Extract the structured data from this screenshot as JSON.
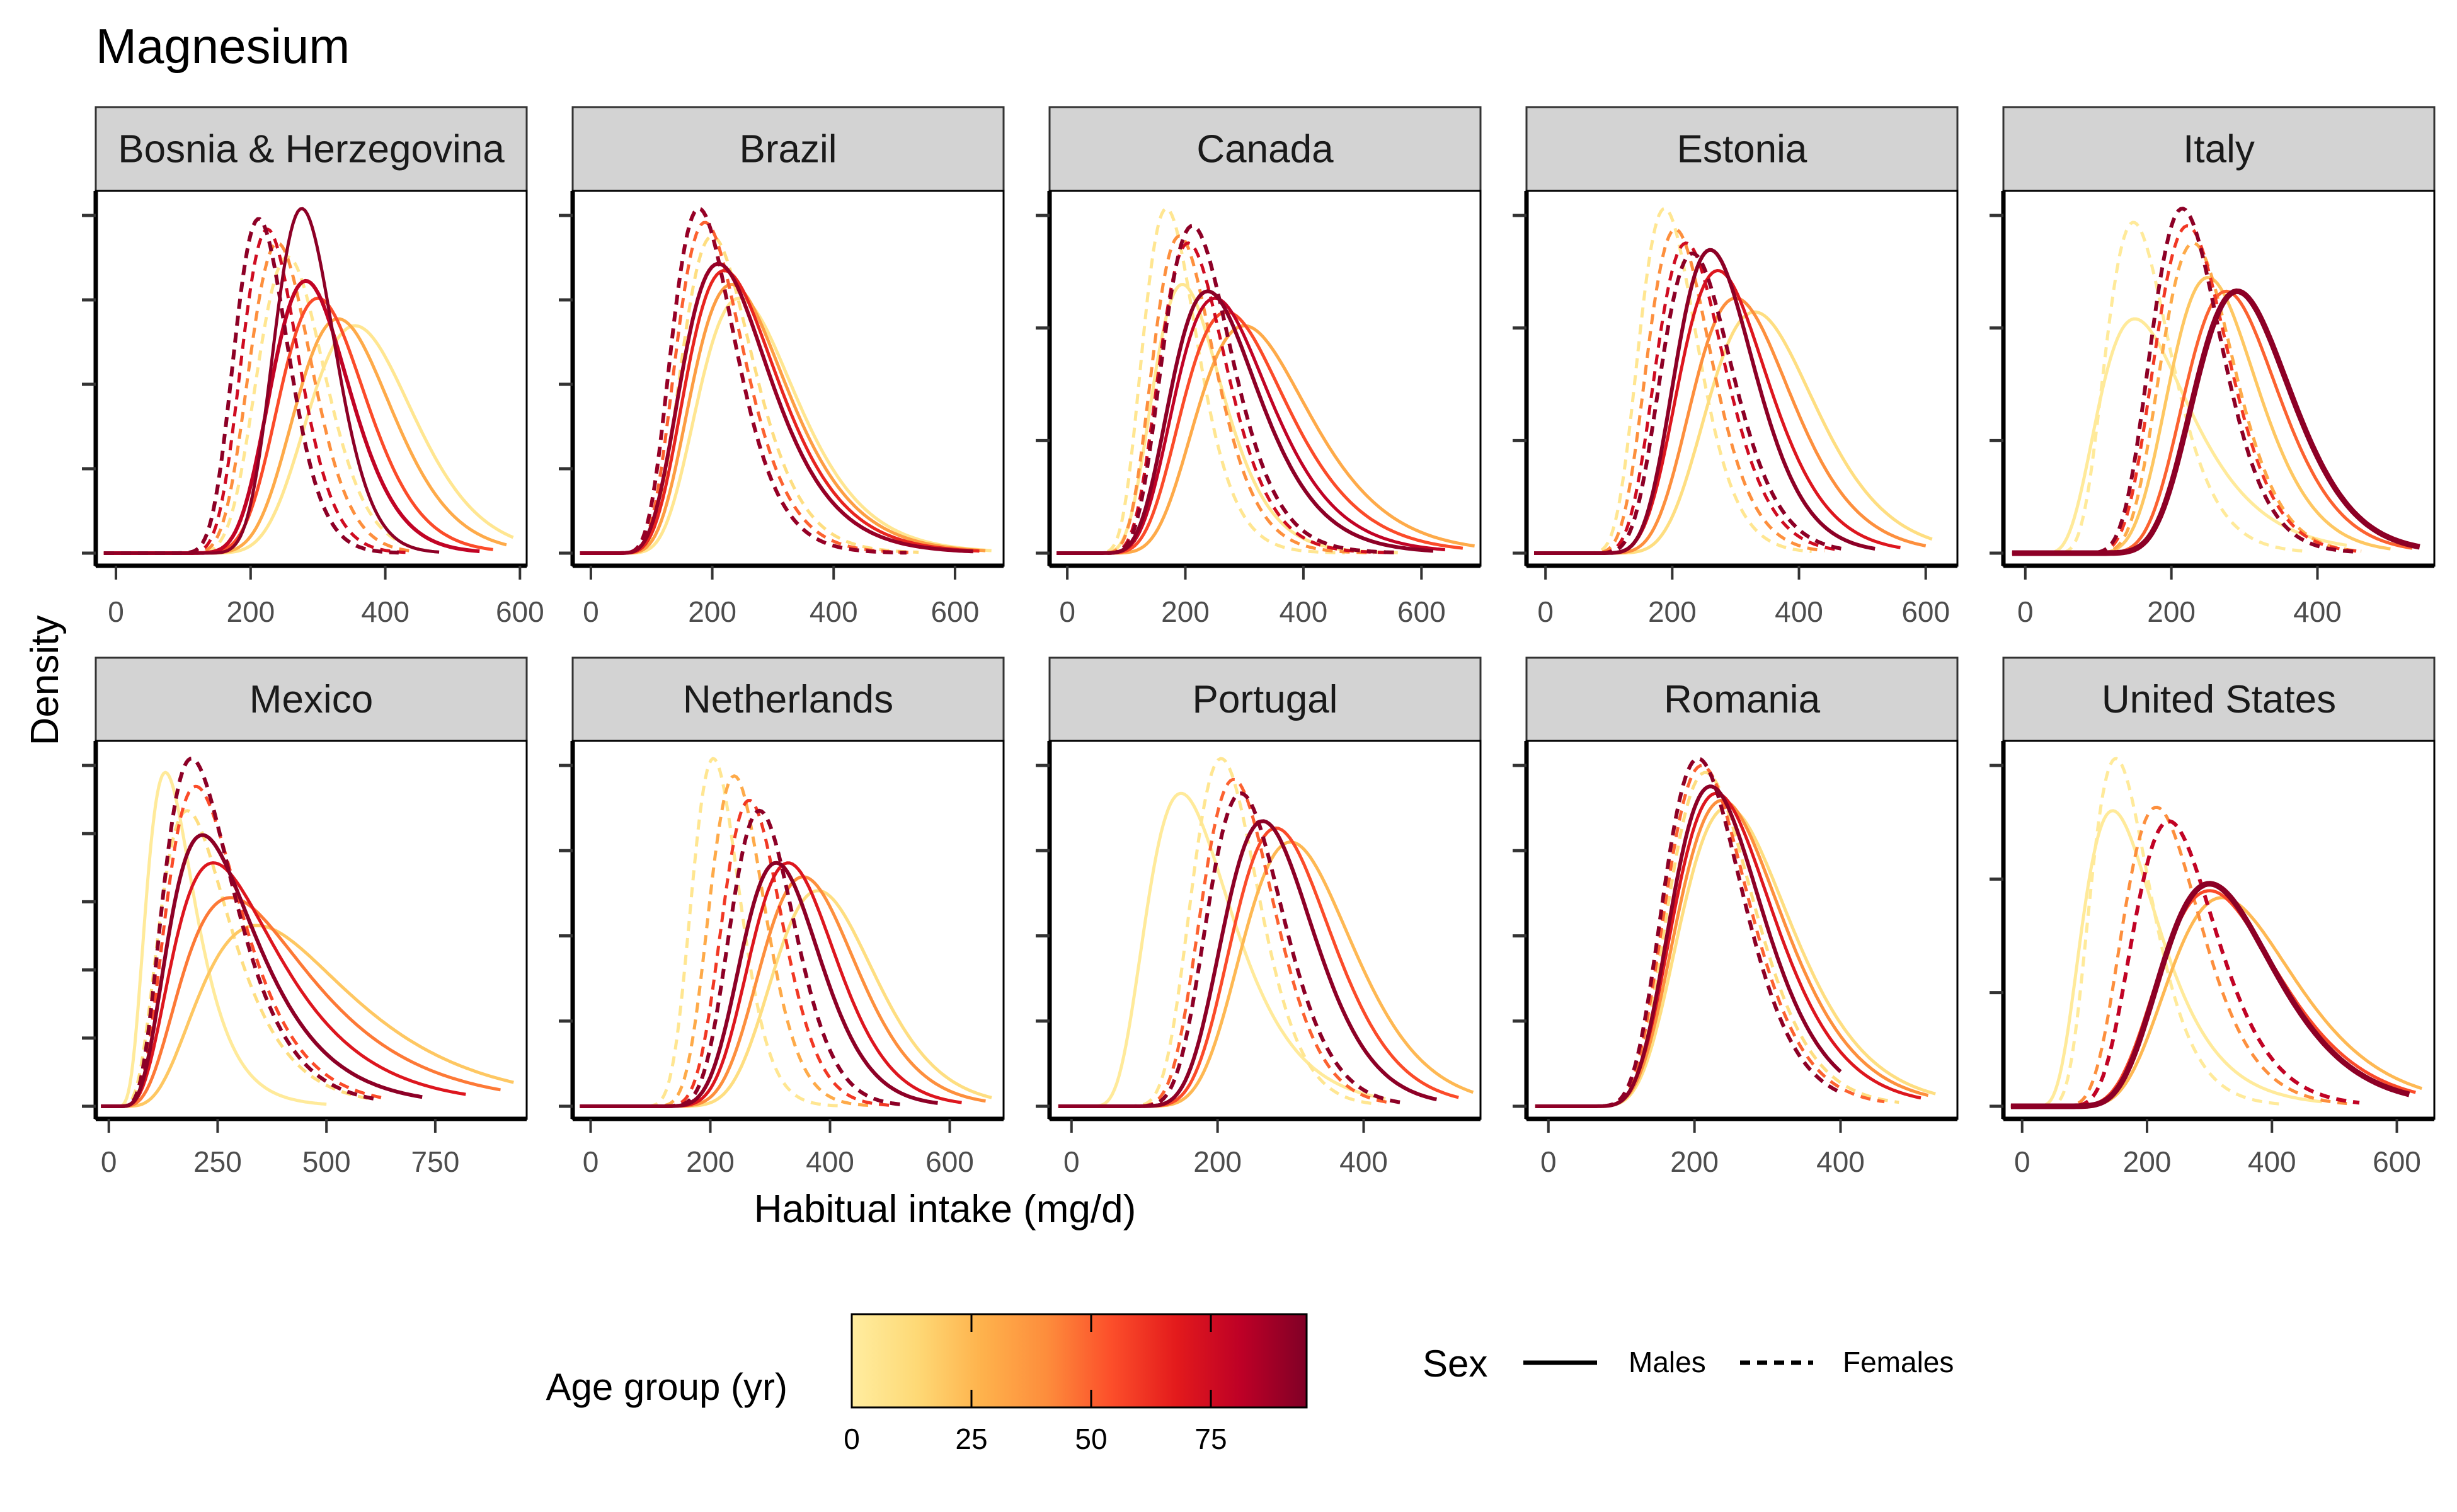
{
  "chart_data": {
    "type": "line",
    "title": "Magnesium",
    "xlabel": "Habitual intake (mg/d)",
    "ylabel": "Density",
    "grid": false,
    "y_tick_labels_shown": false,
    "legend_position": "bottom",
    "colorbar": {
      "title": "Age group (yr)",
      "ticks": [
        "0",
        "25",
        "50",
        "75"
      ],
      "range": [
        0,
        95
      ],
      "colors": [
        "#ffeda0",
        "#fed976",
        "#feb24c",
        "#fd8d3c",
        "#fc4e2a",
        "#e31a1c",
        "#bd0026",
        "#800026"
      ]
    },
    "sex_legend": {
      "title": "Sex",
      "entries": [
        {
          "label": "Males",
          "linetype": "solid"
        },
        {
          "label": "Females",
          "linetype": "dashed"
        }
      ]
    },
    "panels": [
      {
        "country": "Bosnia & Herzegovina",
        "xlim": [
          -30,
          610
        ],
        "x_ticks": [
          "0",
          "200",
          "400",
          "600"
        ],
        "x_tick_values": [
          0,
          200,
          400,
          600
        ],
        "yticks": 5,
        "curves": [
          {
            "sex": "Males",
            "age": 5,
            "peak_x": 355,
            "peak": 0.66,
            "sd": 78,
            "max_x": 590,
            "width": 5
          },
          {
            "sex": "Males",
            "age": 30,
            "peak_x": 330,
            "peak": 0.68,
            "sd": 72,
            "max_x": 580,
            "width": 5
          },
          {
            "sex": "Males",
            "age": 55,
            "peak_x": 300,
            "peak": 0.74,
            "sd": 64,
            "max_x": 560,
            "width": 5
          },
          {
            "sex": "Males",
            "age": 80,
            "peak_x": 282,
            "peak": 0.79,
            "sd": 58,
            "max_x": 540,
            "width": 6
          },
          {
            "sex": "Males",
            "age": 92,
            "peak_x": 276,
            "peak": 1.0,
            "sd": 45,
            "max_x": 480,
            "width": 5
          },
          {
            "sex": "Females",
            "age": 5,
            "peak_x": 255,
            "peak": 0.86,
            "sd": 50,
            "max_x": 450,
            "width": 5
          },
          {
            "sex": "Females",
            "age": 40,
            "peak_x": 240,
            "peak": 0.9,
            "sd": 46,
            "max_x": 440,
            "width": 5
          },
          {
            "sex": "Females",
            "age": 75,
            "peak_x": 225,
            "peak": 0.94,
            "sd": 42,
            "max_x": 430,
            "width": 5
          },
          {
            "sex": "Females",
            "age": 92,
            "peak_x": 212,
            "peak": 0.97,
            "sd": 40,
            "max_x": 420,
            "width": 6
          }
        ]
      },
      {
        "country": "Brazil",
        "xlim": [
          -30,
          680
        ],
        "x_ticks": [
          "0",
          "200",
          "400",
          "600"
        ],
        "x_tick_values": [
          0,
          200,
          400,
          600
        ],
        "yticks": 5,
        "curves": [
          {
            "sex": "Males",
            "age": 5,
            "peak_x": 245,
            "peak": 0.74,
            "sd": 80,
            "max_x": 660,
            "width": 5
          },
          {
            "sex": "Males",
            "age": 35,
            "peak_x": 232,
            "peak": 0.78,
            "sd": 78,
            "max_x": 650,
            "width": 5
          },
          {
            "sex": "Males",
            "age": 65,
            "peak_x": 220,
            "peak": 0.82,
            "sd": 75,
            "max_x": 640,
            "width": 5
          },
          {
            "sex": "Males",
            "age": 90,
            "peak_x": 210,
            "peak": 0.84,
            "sd": 72,
            "max_x": 630,
            "width": 6
          },
          {
            "sex": "Females",
            "age": 10,
            "peak_x": 200,
            "peak": 0.92,
            "sd": 58,
            "max_x": 540,
            "width": 5
          },
          {
            "sex": "Females",
            "age": 50,
            "peak_x": 188,
            "peak": 0.96,
            "sd": 55,
            "max_x": 530,
            "width": 5
          },
          {
            "sex": "Females",
            "age": 90,
            "peak_x": 178,
            "peak": 1.0,
            "sd": 52,
            "max_x": 520,
            "width": 6
          }
        ]
      },
      {
        "country": "Canada",
        "xlim": [
          -30,
          700
        ],
        "x_ticks": [
          "0",
          "200",
          "400",
          "600"
        ],
        "x_tick_values": [
          0,
          200,
          400,
          600
        ],
        "yticks": 4,
        "curves": [
          {
            "sex": "Males",
            "age": 5,
            "peak_x": 195,
            "peak": 0.78,
            "sd": 58,
            "max_x": 560,
            "width": 5
          },
          {
            "sex": "Males",
            "age": 30,
            "peak_x": 300,
            "peak": 0.66,
            "sd": 95,
            "max_x": 690,
            "width": 5
          },
          {
            "sex": "Males",
            "age": 55,
            "peak_x": 270,
            "peak": 0.7,
            "sd": 88,
            "max_x": 670,
            "width": 5
          },
          {
            "sex": "Males",
            "age": 80,
            "peak_x": 250,
            "peak": 0.74,
            "sd": 80,
            "max_x": 640,
            "width": 5
          },
          {
            "sex": "Males",
            "age": 92,
            "peak_x": 238,
            "peak": 0.76,
            "sd": 74,
            "max_x": 620,
            "width": 6
          },
          {
            "sex": "Females",
            "age": 5,
            "peak_x": 168,
            "peak": 1.0,
            "sd": 46,
            "max_x": 470,
            "width": 5
          },
          {
            "sex": "Females",
            "age": 40,
            "peak_x": 190,
            "peak": 0.92,
            "sd": 52,
            "max_x": 520,
            "width": 5
          },
          {
            "sex": "Females",
            "age": 75,
            "peak_x": 205,
            "peak": 0.9,
            "sd": 56,
            "max_x": 540,
            "width": 5
          },
          {
            "sex": "Females",
            "age": 92,
            "peak_x": 212,
            "peak": 0.95,
            "sd": 58,
            "max_x": 560,
            "width": 6
          }
        ]
      },
      {
        "country": "Estonia",
        "xlim": [
          -30,
          650
        ],
        "x_ticks": [
          "0",
          "200",
          "400",
          "600"
        ],
        "x_tick_values": [
          0,
          200,
          400,
          600
        ],
        "yticks": 4,
        "curves": [
          {
            "sex": "Males",
            "age": 10,
            "peak_x": 330,
            "peak": 0.7,
            "sd": 85,
            "max_x": 610,
            "width": 5
          },
          {
            "sex": "Males",
            "age": 40,
            "peak_x": 300,
            "peak": 0.74,
            "sd": 78,
            "max_x": 600,
            "width": 5
          },
          {
            "sex": "Males",
            "age": 70,
            "peak_x": 272,
            "peak": 0.82,
            "sd": 70,
            "max_x": 560,
            "width": 5
          },
          {
            "sex": "Males",
            "age": 92,
            "peak_x": 260,
            "peak": 0.88,
            "sd": 62,
            "max_x": 520,
            "width": 6
          },
          {
            "sex": "Females",
            "age": 5,
            "peak_x": 188,
            "peak": 1.0,
            "sd": 46,
            "max_x": 420,
            "width": 5
          },
          {
            "sex": "Females",
            "age": 40,
            "peak_x": 205,
            "peak": 0.94,
            "sd": 50,
            "max_x": 440,
            "width": 5
          },
          {
            "sex": "Females",
            "age": 75,
            "peak_x": 222,
            "peak": 0.9,
            "sd": 54,
            "max_x": 460,
            "width": 5
          },
          {
            "sex": "Females",
            "age": 92,
            "peak_x": 232,
            "peak": 0.87,
            "sd": 56,
            "max_x": 470,
            "width": 6
          }
        ]
      },
      {
        "country": "Italy",
        "xlim": [
          -30,
          560
        ],
        "x_ticks": [
          "0",
          "200",
          "400"
        ],
        "x_tick_values": [
          0,
          200,
          400
        ],
        "yticks": 4,
        "curves": [
          {
            "sex": "Males",
            "age": 2,
            "peak_x": 150,
            "peak": 0.68,
            "sd": 62,
            "max_x": 440,
            "width": 5
          },
          {
            "sex": "Males",
            "age": 20,
            "peak_x": 250,
            "peak": 0.8,
            "sd": 60,
            "max_x": 500,
            "width": 5
          },
          {
            "sex": "Males",
            "age": 50,
            "peak_x": 275,
            "peak": 0.76,
            "sd": 64,
            "max_x": 530,
            "width": 5
          },
          {
            "sex": "Males",
            "age": 92,
            "peak_x": 290,
            "peak": 0.76,
            "sd": 66,
            "max_x": 540,
            "width": 9
          },
          {
            "sex": "Females",
            "age": 2,
            "peak_x": 148,
            "peak": 0.96,
            "sd": 44,
            "max_x": 380,
            "width": 5
          },
          {
            "sex": "Females",
            "age": 30,
            "peak_x": 230,
            "peak": 0.9,
            "sd": 50,
            "max_x": 460,
            "width": 5
          },
          {
            "sex": "Females",
            "age": 60,
            "peak_x": 222,
            "peak": 0.95,
            "sd": 50,
            "max_x": 460,
            "width": 5
          },
          {
            "sex": "Females",
            "age": 92,
            "peak_x": 215,
            "peak": 1.0,
            "sd": 48,
            "max_x": 450,
            "width": 6
          }
        ]
      },
      {
        "country": "Mexico",
        "xlim": [
          -30,
          960
        ],
        "x_ticks": [
          "0",
          "250",
          "500",
          "750"
        ],
        "x_tick_values": [
          0,
          250,
          500,
          750
        ],
        "yticks": 6,
        "curves": [
          {
            "sex": "Males",
            "age": 2,
            "peak_x": 130,
            "peak": 0.96,
            "sd": 55,
            "max_x": 500,
            "width": 5
          },
          {
            "sex": "Males",
            "age": 20,
            "peak_x": 340,
            "peak": 0.52,
            "sd": 170,
            "max_x": 930,
            "width": 5
          },
          {
            "sex": "Males",
            "age": 45,
            "peak_x": 280,
            "peak": 0.6,
            "sd": 145,
            "max_x": 900,
            "width": 5
          },
          {
            "sex": "Males",
            "age": 70,
            "peak_x": 240,
            "peak": 0.7,
            "sd": 120,
            "max_x": 820,
            "width": 5
          },
          {
            "sex": "Males",
            "age": 92,
            "peak_x": 215,
            "peak": 0.78,
            "sd": 100,
            "max_x": 720,
            "width": 6
          },
          {
            "sex": "Females",
            "age": 10,
            "peak_x": 180,
            "peak": 0.85,
            "sd": 80,
            "max_x": 600,
            "width": 5
          },
          {
            "sex": "Females",
            "age": 55,
            "peak_x": 200,
            "peak": 0.92,
            "sd": 85,
            "max_x": 640,
            "width": 5
          },
          {
            "sex": "Females",
            "age": 92,
            "peak_x": 190,
            "peak": 1.0,
            "sd": 80,
            "max_x": 620,
            "width": 6
          }
        ]
      },
      {
        "country": "Netherlands",
        "xlim": [
          -30,
          690
        ],
        "x_ticks": [
          "0",
          "200",
          "400",
          "600"
        ],
        "x_tick_values": [
          0,
          200,
          400,
          600
        ],
        "yticks": 5,
        "curves": [
          {
            "sex": "Males",
            "age": 10,
            "peak_x": 380,
            "peak": 0.62,
            "sd": 85,
            "max_x": 670,
            "width": 5
          },
          {
            "sex": "Males",
            "age": 40,
            "peak_x": 355,
            "peak": 0.66,
            "sd": 80,
            "max_x": 660,
            "width": 5
          },
          {
            "sex": "Males",
            "age": 70,
            "peak_x": 330,
            "peak": 0.7,
            "sd": 72,
            "max_x": 620,
            "width": 5
          },
          {
            "sex": "Males",
            "age": 92,
            "peak_x": 310,
            "peak": 0.7,
            "sd": 66,
            "max_x": 580,
            "width": 6
          },
          {
            "sex": "Females",
            "age": 5,
            "peak_x": 205,
            "peak": 1.0,
            "sd": 40,
            "max_x": 420,
            "width": 5
          },
          {
            "sex": "Females",
            "age": 30,
            "peak_x": 240,
            "peak": 0.95,
            "sd": 46,
            "max_x": 470,
            "width": 5
          },
          {
            "sex": "Females",
            "age": 60,
            "peak_x": 265,
            "peak": 0.88,
            "sd": 50,
            "max_x": 500,
            "width": 5
          },
          {
            "sex": "Females",
            "age": 92,
            "peak_x": 282,
            "peak": 0.85,
            "sd": 54,
            "max_x": 520,
            "width": 6
          }
        ]
      },
      {
        "country": "Portugal",
        "xlim": [
          -30,
          560
        ],
        "x_ticks": [
          "0",
          "200",
          "400"
        ],
        "x_tick_values": [
          0,
          200,
          400
        ],
        "yticks": 5,
        "curves": [
          {
            "sex": "Males",
            "age": 2,
            "peak_x": 150,
            "peak": 0.9,
            "sd": 58,
            "max_x": 430,
            "width": 5
          },
          {
            "sex": "Males",
            "age": 25,
            "peak_x": 300,
            "peak": 0.76,
            "sd": 75,
            "max_x": 550,
            "width": 5
          },
          {
            "sex": "Males",
            "age": 55,
            "peak_x": 280,
            "peak": 0.8,
            "sd": 68,
            "max_x": 530,
            "width": 5
          },
          {
            "sex": "Males",
            "age": 92,
            "peak_x": 262,
            "peak": 0.82,
            "sd": 62,
            "max_x": 500,
            "width": 6
          },
          {
            "sex": "Females",
            "age": 5,
            "peak_x": 205,
            "peak": 1.0,
            "sd": 46,
            "max_x": 420,
            "width": 5
          },
          {
            "sex": "Females",
            "age": 50,
            "peak_x": 222,
            "peak": 0.94,
            "sd": 50,
            "max_x": 440,
            "width": 5
          },
          {
            "sex": "Females",
            "age": 92,
            "peak_x": 232,
            "peak": 0.9,
            "sd": 52,
            "max_x": 450,
            "width": 6
          }
        ]
      },
      {
        "country": "Romania",
        "xlim": [
          -30,
          560
        ],
        "x_ticks": [
          "0",
          "200",
          "400"
        ],
        "x_tick_values": [
          0,
          200,
          400
        ],
        "yticks": 5,
        "curves": [
          {
            "sex": "Males",
            "age": 10,
            "peak_x": 245,
            "peak": 0.86,
            "sd": 75,
            "max_x": 530,
            "width": 5
          },
          {
            "sex": "Males",
            "age": 40,
            "peak_x": 238,
            "peak": 0.88,
            "sd": 72,
            "max_x": 520,
            "width": 5
          },
          {
            "sex": "Males",
            "age": 70,
            "peak_x": 230,
            "peak": 0.9,
            "sd": 68,
            "max_x": 510,
            "width": 5
          },
          {
            "sex": "Males",
            "age": 92,
            "peak_x": 222,
            "peak": 0.92,
            "sd": 62,
            "max_x": 400,
            "width": 6
          },
          {
            "sex": "Females",
            "age": 10,
            "peak_x": 215,
            "peak": 0.96,
            "sd": 58,
            "max_x": 480,
            "width": 5
          },
          {
            "sex": "Females",
            "age": 50,
            "peak_x": 210,
            "peak": 0.98,
            "sd": 56,
            "max_x": 460,
            "width": 5
          },
          {
            "sex": "Females",
            "age": 92,
            "peak_x": 205,
            "peak": 1.0,
            "sd": 54,
            "max_x": 400,
            "width": 6
          }
        ]
      },
      {
        "country": "United States",
        "xlim": [
          -30,
          660
        ],
        "x_ticks": [
          "0",
          "200",
          "400",
          "600"
        ],
        "x_tick_values": [
          0,
          200,
          400,
          600
        ],
        "yticks": 4,
        "curves": [
          {
            "sex": "Males",
            "age": 2,
            "peak_x": 145,
            "peak": 0.85,
            "sd": 60,
            "max_x": 480,
            "width": 5
          },
          {
            "sex": "Males",
            "age": 25,
            "peak_x": 320,
            "peak": 0.6,
            "sd": 100,
            "max_x": 640,
            "width": 5
          },
          {
            "sex": "Males",
            "age": 55,
            "peak_x": 300,
            "peak": 0.62,
            "sd": 95,
            "max_x": 630,
            "width": 5
          },
          {
            "sex": "Males",
            "age": 92,
            "peak_x": 300,
            "peak": 0.64,
            "sd": 90,
            "max_x": 620,
            "width": 9
          },
          {
            "sex": "Females",
            "age": 2,
            "peak_x": 150,
            "peak": 1.0,
            "sd": 48,
            "max_x": 420,
            "width": 5
          },
          {
            "sex": "Females",
            "age": 40,
            "peak_x": 215,
            "peak": 0.86,
            "sd": 62,
            "max_x": 520,
            "width": 5
          },
          {
            "sex": "Females",
            "age": 80,
            "peak_x": 235,
            "peak": 0.82,
            "sd": 66,
            "max_x": 540,
            "width": 6
          }
        ]
      }
    ]
  }
}
